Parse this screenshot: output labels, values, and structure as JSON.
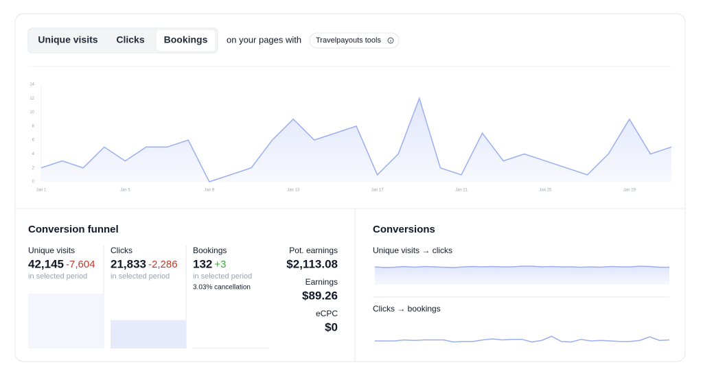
{
  "tabs": [
    "Unique visits",
    "Clicks",
    "Bookings"
  ],
  "active_tab": 2,
  "filter_text": "on your pages with",
  "tools_pill": "Travelpayouts tools",
  "main_chart": {
    "type": "area",
    "color": "#9aaef0",
    "categories": [
      "Jan 1",
      null,
      null,
      null,
      "Jan 5",
      null,
      null,
      null,
      "Jan 9",
      null,
      null,
      null,
      "Jan 13",
      null,
      null,
      null,
      "Jan 17",
      null,
      null,
      null,
      "Jan 21",
      null,
      null,
      null,
      "Jan 25",
      null,
      null,
      null,
      "Jan 29",
      null,
      null
    ],
    "values": [
      2,
      3,
      2,
      5,
      3,
      5,
      5,
      6,
      0,
      1,
      2,
      6,
      9,
      6,
      7,
      8,
      1,
      4,
      12,
      2,
      1,
      7,
      3,
      4,
      3,
      2,
      1,
      4,
      9,
      4,
      5
    ],
    "ylim": [
      0,
      14
    ],
    "yticks": [
      0,
      2,
      4,
      6,
      8,
      10,
      12,
      14
    ]
  },
  "funnel": {
    "title": "Conversion funnel",
    "stages": [
      {
        "label": "Unique visits",
        "value": 42145,
        "value_label": "42,145",
        "change": "-7,604",
        "note": "in selected period"
      },
      {
        "label": "Clicks",
        "value": 21833,
        "value_label": "21,833",
        "change": "-2,286",
        "note": "in selected period"
      },
      {
        "label": "Bookings",
        "value": 132,
        "value_label": "132",
        "change": "+3",
        "note": "in selected period"
      }
    ],
    "cancellation": "3.03% cancellation",
    "earnings": [
      {
        "label": "Pot. earnings",
        "value": "$2,113.08"
      },
      {
        "label": "Earnings",
        "value": "$89.26"
      },
      {
        "label": "eCPC",
        "value": "$0"
      }
    ]
  },
  "conversions": {
    "title": "Conversions",
    "charts": [
      {
        "title": "Unique visits → clicks",
        "type": "area",
        "color": "#9aaef0",
        "ylim": [
          0,
          60
        ],
        "values": [
          52,
          50,
          51,
          53,
          51,
          53,
          52,
          51,
          50,
          52,
          53,
          52,
          53,
          52,
          52,
          54,
          54,
          52,
          53,
          52,
          52,
          51,
          52,
          51,
          53,
          52,
          52,
          54,
          53,
          51,
          51
        ]
      },
      {
        "title": "Clicks → bookings",
        "type": "line",
        "color": "#9aaef0",
        "ylim": [
          0,
          4
        ],
        "values": [
          0.4,
          0.4,
          0.4,
          0.6,
          0.5,
          0.6,
          0.6,
          0.6,
          0.2,
          0.3,
          0.3,
          0.6,
          0.8,
          0.6,
          0.7,
          0.7,
          0.2,
          0.5,
          1.3,
          0.3,
          0.2,
          0.7,
          0.4,
          0.5,
          0.4,
          0.3,
          0.3,
          0.5,
          1.2,
          0.5,
          0.6
        ]
      }
    ]
  }
}
